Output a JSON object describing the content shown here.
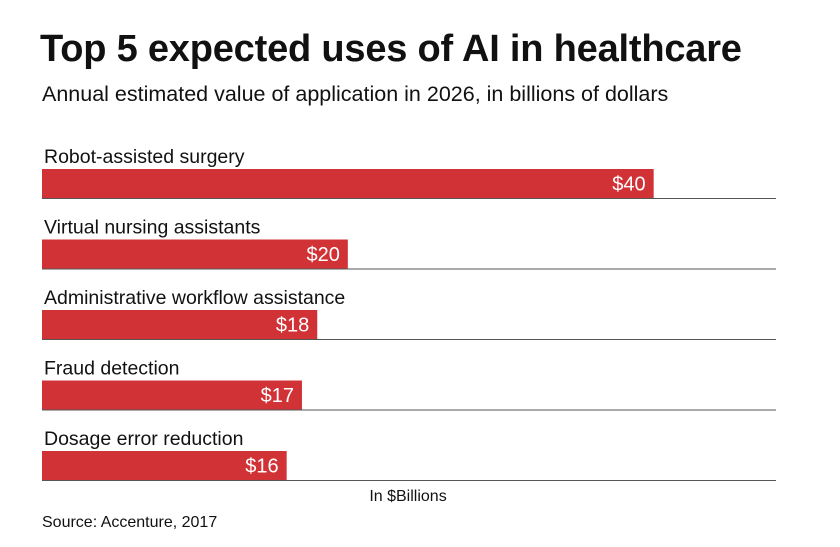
{
  "chart_data": {
    "type": "bar",
    "orientation": "horizontal",
    "title": "Top 5 expected uses of AI in healthcare",
    "subtitle": "Annual estimated value of application in 2026, in billions of dollars",
    "categories": [
      "Robot-assisted surgery",
      "Virtual nursing assistants",
      "Administrative workflow assistance",
      "Fraud detection",
      "Dosage error reduction"
    ],
    "values": [
      40,
      20,
      18,
      17,
      16
    ],
    "value_labels": [
      "$40",
      "$20",
      "$18",
      "$17",
      "$16"
    ],
    "xlabel": "In $Billions",
    "ylabel": "",
    "xlim": [
      0,
      48
    ],
    "bar_color": "#d03236",
    "source": "Source: Accenture, 2017"
  }
}
